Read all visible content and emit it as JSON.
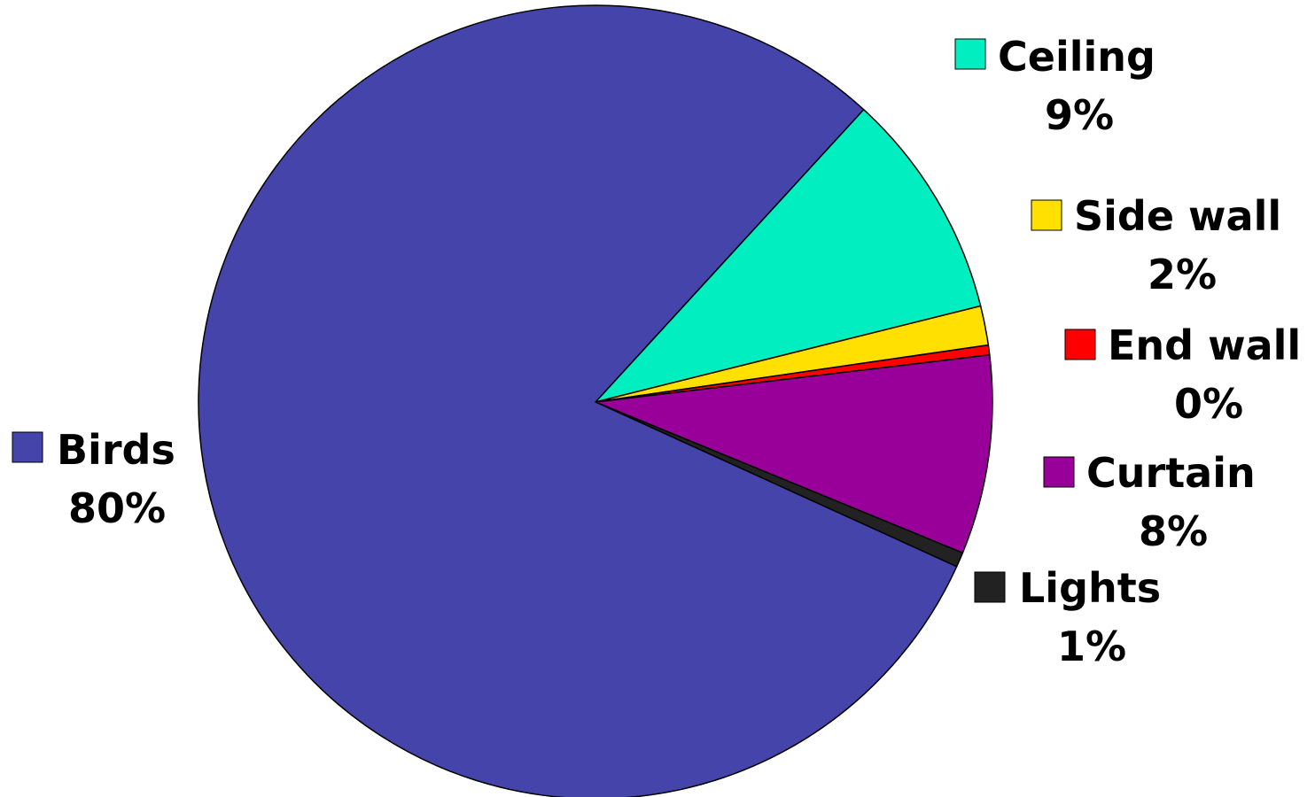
{
  "chart_data": {
    "type": "pie",
    "title": "",
    "start_angle_deg": -47.5,
    "direction": "clockwise",
    "label_format": "category + percent",
    "slices": [
      {
        "label": "Ceiling",
        "percent_text": "9%",
        "value": 9.3,
        "color": "#00EEC0"
      },
      {
        "label": "Side wall",
        "percent_text": "2%",
        "value": 1.6,
        "color": "#FFE000"
      },
      {
        "label": "End wall",
        "percent_text": "0%",
        "value": 0.4,
        "color": "#FF0000"
      },
      {
        "label": "Curtain",
        "percent_text": "8%",
        "value": 8.1,
        "color": "#990099"
      },
      {
        "label": "Lights",
        "percent_text": "1%",
        "value": 0.6,
        "color": "#222222"
      },
      {
        "label": "Birds",
        "percent_text": "80%",
        "value": 80.0,
        "color": "#4444AA"
      }
    ]
  }
}
